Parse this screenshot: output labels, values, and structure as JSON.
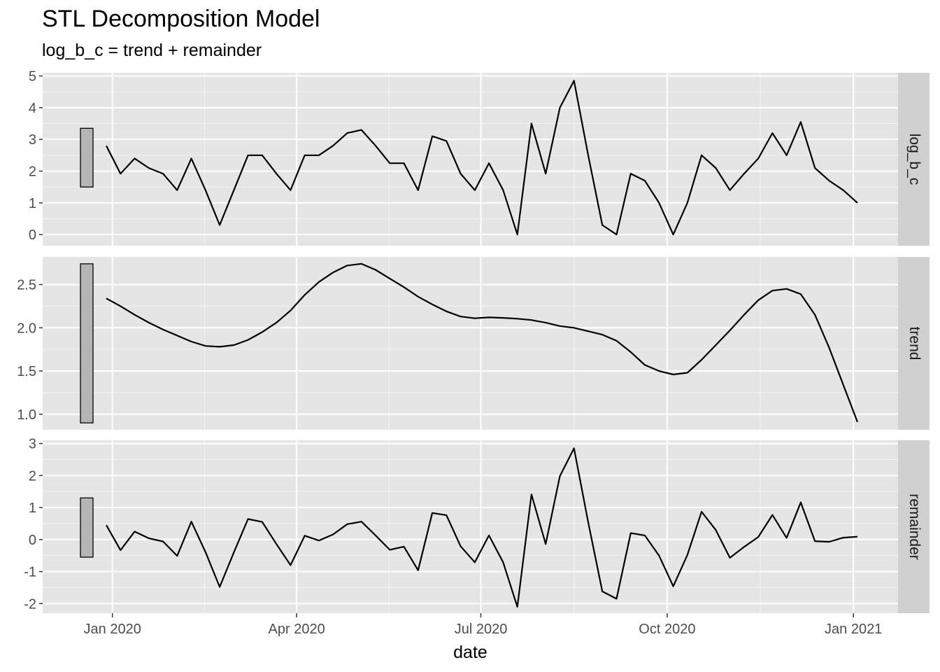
{
  "chart_data": {
    "type": "line",
    "title": "STL Decomposition Model",
    "subtitle": "log_b_c = trend + remainder",
    "xlabel": "date",
    "x_ticks": [
      "Jan 2020",
      "Apr 2020",
      "Jul 2020",
      "Oct 2020",
      "Jan 2021"
    ],
    "x": [
      "2019-12-29",
      "2020-01-05",
      "2020-01-12",
      "2020-01-19",
      "2020-01-26",
      "2020-02-02",
      "2020-02-09",
      "2020-02-16",
      "2020-02-23",
      "2020-03-01",
      "2020-03-08",
      "2020-03-15",
      "2020-03-22",
      "2020-03-29",
      "2020-04-05",
      "2020-04-12",
      "2020-04-19",
      "2020-04-26",
      "2020-05-03",
      "2020-05-10",
      "2020-05-17",
      "2020-05-24",
      "2020-05-31",
      "2020-06-07",
      "2020-06-14",
      "2020-06-21",
      "2020-06-28",
      "2020-07-05",
      "2020-07-12",
      "2020-07-19",
      "2020-07-26",
      "2020-08-02",
      "2020-08-09",
      "2020-08-16",
      "2020-08-23",
      "2020-08-30",
      "2020-09-06",
      "2020-09-13",
      "2020-09-20",
      "2020-09-27",
      "2020-10-04",
      "2020-10-11",
      "2020-10-18",
      "2020-10-25",
      "2020-11-01",
      "2020-11-08",
      "2020-11-15",
      "2020-11-22",
      "2020-11-29",
      "2020-12-06",
      "2020-12-13",
      "2020-12-20",
      "2020-12-27",
      "2021-01-03"
    ],
    "panels": [
      {
        "name": "log_b_c",
        "ylim": [
          -0.35,
          5.1
        ],
        "yticks": [
          0,
          1,
          2,
          3,
          4,
          5
        ],
        "scale_bar": [
          1.5,
          3.35
        ],
        "values": [
          2.8,
          1.92,
          2.4,
          2.1,
          1.92,
          1.4,
          2.4,
          1.4,
          0.3,
          1.4,
          2.5,
          2.5,
          1.92,
          1.4,
          2.5,
          2.5,
          2.8,
          3.2,
          3.3,
          2.8,
          2.25,
          2.25,
          1.4,
          3.1,
          2.95,
          1.92,
          1.4,
          2.25,
          1.4,
          0.0,
          3.5,
          1.92,
          4.0,
          4.85,
          2.5,
          0.3,
          0.0,
          1.92,
          1.7,
          1.0,
          0.0,
          1.0,
          2.5,
          2.1,
          1.4,
          1.92,
          2.4,
          3.2,
          2.5,
          3.55,
          2.1,
          1.7,
          1.4,
          1.0
        ]
      },
      {
        "name": "trend",
        "ylim": [
          0.82,
          2.82
        ],
        "yticks": [
          1.0,
          1.5,
          2.0,
          2.5
        ],
        "ytick_labels": [
          "1.0",
          "1.5",
          "2.0",
          "2.5"
        ],
        "scale_bar": [
          0.9,
          2.74
        ],
        "values": [
          2.34,
          2.25,
          2.15,
          2.06,
          1.98,
          1.91,
          1.84,
          1.79,
          1.78,
          1.8,
          1.86,
          1.95,
          2.06,
          2.2,
          2.38,
          2.53,
          2.64,
          2.72,
          2.74,
          2.67,
          2.57,
          2.47,
          2.36,
          2.27,
          2.19,
          2.13,
          2.11,
          2.12,
          2.115,
          2.105,
          2.09,
          2.06,
          2.02,
          2.0,
          1.96,
          1.92,
          1.85,
          1.72,
          1.57,
          1.5,
          1.46,
          1.48,
          1.63,
          1.8,
          1.97,
          2.15,
          2.32,
          2.43,
          2.45,
          2.39,
          2.15,
          1.77,
          1.34,
          0.91
        ]
      },
      {
        "name": "remainder",
        "ylim": [
          -2.3,
          3.1
        ],
        "yticks": [
          -2,
          -1,
          0,
          1,
          2,
          3
        ],
        "scale_bar": [
          -0.55,
          1.3
        ],
        "values": [
          0.45,
          -0.33,
          0.25,
          0.04,
          -0.06,
          -0.51,
          0.56,
          -0.39,
          -1.48,
          -0.4,
          0.64,
          0.55,
          -0.14,
          -0.8,
          0.12,
          -0.03,
          0.16,
          0.48,
          0.56,
          0.13,
          -0.32,
          -0.22,
          -0.96,
          0.83,
          0.76,
          -0.21,
          -0.71,
          0.13,
          -0.71,
          -2.1,
          1.41,
          -0.14,
          1.98,
          2.85,
          0.54,
          -1.62,
          -1.85,
          0.2,
          0.13,
          -0.5,
          -1.46,
          -0.48,
          0.87,
          0.3,
          -0.57,
          -0.23,
          0.08,
          0.77,
          0.05,
          1.16,
          -0.05,
          -0.07,
          0.06,
          0.09
        ]
      }
    ],
    "colors": {
      "panel_bg": "#e5e5e5",
      "grid_major": "#ffffff",
      "strip_bg": "#d0d0d0",
      "line": "#000000",
      "scale_bar_fill": "#b5b5b5",
      "axis_text": "#4d4d4d"
    }
  }
}
